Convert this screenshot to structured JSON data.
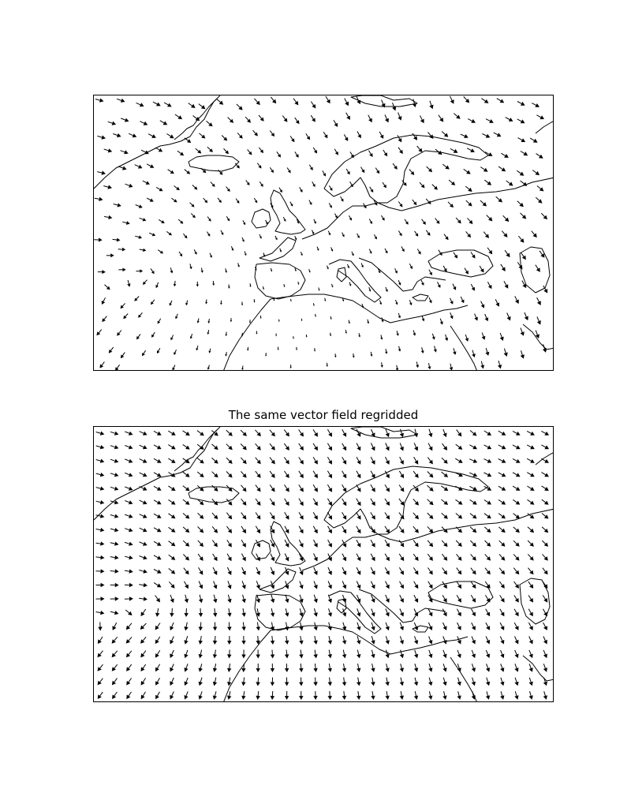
{
  "maps": [
    {
      "title": "",
      "description": "",
      "field": "sparse"
    },
    {
      "title": "The same vector field regridded",
      "description": "",
      "field": "regridded"
    }
  ],
  "colors": {
    "coastline": "#000000",
    "arrow": "#000000",
    "background": "#ffffff",
    "frame": "#000000"
  }
}
